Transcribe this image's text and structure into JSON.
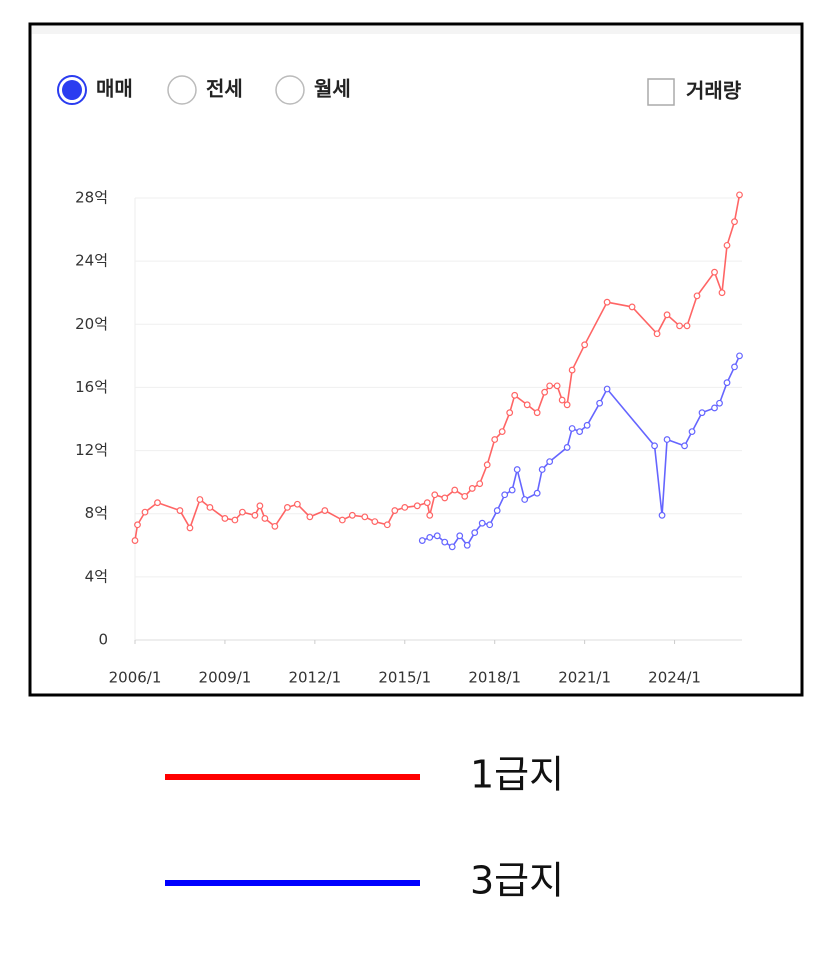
{
  "ui": {
    "options": [
      "매매",
      "전세",
      "월세"
    ],
    "selected_option": 0,
    "checkbox": "거래량"
  },
  "chart_data": {
    "type": "line",
    "xlim": [
      "2006/1",
      "2026/4"
    ],
    "xticks": [
      "2006/1",
      "2009/1",
      "2012/1",
      "2015/1",
      "2018/1",
      "2021/1",
      "2024/1"
    ],
    "ylim": [
      0,
      28
    ],
    "yticks": [
      0,
      {
        "value": 4,
        "label": "4억"
      },
      {
        "value": 8,
        "label": "8억"
      },
      {
        "value": 12,
        "label": "12억"
      },
      {
        "value": 16,
        "label": "16억"
      },
      {
        "value": 20,
        "label": "20억"
      },
      {
        "value": 24,
        "label": "24억"
      },
      {
        "value": 28,
        "label": "28억"
      }
    ],
    "grid": true,
    "series": [
      {
        "name": "1급지",
        "color": "#ff0000",
        "x": [
          "2006/1",
          "2006/2",
          "2006/5",
          "2006/10",
          "2007/7",
          "2007/11",
          "2008/3",
          "2008/7",
          "2009/1",
          "2009/5",
          "2009/8",
          "2010/1",
          "2010/3",
          "2010/5",
          "2010/9",
          "2011/2",
          "2011/6",
          "2011/11",
          "2012/5",
          "2012/12",
          "2013/4",
          "2013/9",
          "2014/1",
          "2014/6",
          "2014/9",
          "2015/1",
          "2015/6",
          "2015/10",
          "2015/11",
          "2016/1",
          "2016/5",
          "2016/9",
          "2017/1",
          "2017/4",
          "2017/7",
          "2017/10",
          "2018/1",
          "2018/4",
          "2018/7",
          "2018/9",
          "2019/2",
          "2019/6",
          "2019/9",
          "2019/11",
          "2020/2",
          "2020/4",
          "2020/6",
          "2020/8",
          "2021/1",
          "2021/10",
          "2022/8",
          "2023/6",
          "2023/10",
          "2024/3",
          "2024/6",
          "2024/10",
          "2025/5",
          "2025/8",
          "2025/10",
          "2026/1",
          "2026/3"
        ],
        "values": [
          6.3,
          7.3,
          8.1,
          8.7,
          8.2,
          7.1,
          8.9,
          8.4,
          7.7,
          7.6,
          8.1,
          7.9,
          8.5,
          7.7,
          7.2,
          8.4,
          8.6,
          7.8,
          8.2,
          7.6,
          7.9,
          7.8,
          7.5,
          7.3,
          8.2,
          8.4,
          8.5,
          8.7,
          7.9,
          9.2,
          9.0,
          9.5,
          9.1,
          9.6,
          9.9,
          11.1,
          12.7,
          13.2,
          14.4,
          15.5,
          14.9,
          14.4,
          15.7,
          16.1,
          16.1,
          15.2,
          14.9,
          17.1,
          18.7,
          21.4,
          21.1,
          19.4,
          20.6,
          19.9,
          19.9,
          21.8,
          23.3,
          22.0,
          25.0,
          26.5,
          28.2
        ]
      },
      {
        "name": "3급지",
        "color": "#0000ff",
        "x": [
          "2015/8",
          "2015/11",
          "2016/2",
          "2016/5",
          "2016/8",
          "2016/11",
          "2017/2",
          "2017/5",
          "2017/8",
          "2017/11",
          "2018/2",
          "2018/5",
          "2018/8",
          "2018/10",
          "2019/1",
          "2019/6",
          "2019/8",
          "2019/11",
          "2020/6",
          "2020/8",
          "2020/11",
          "2021/2",
          "2021/7",
          "2021/10",
          "2023/5",
          "2023/8",
          "2023/10",
          "2024/5",
          "2024/8",
          "2024/12",
          "2025/5",
          "2025/7",
          "2025/10",
          "2026/1",
          "2026/3"
        ],
        "values": [
          6.3,
          6.5,
          6.6,
          6.2,
          5.9,
          6.6,
          6.0,
          6.8,
          7.4,
          7.3,
          8.2,
          9.2,
          9.5,
          10.8,
          8.9,
          9.3,
          10.8,
          11.3,
          12.2,
          13.4,
          13.2,
          13.6,
          15.0,
          15.9,
          12.3,
          7.9,
          12.7,
          12.3,
          13.2,
          14.4,
          14.7,
          15.0,
          16.3,
          17.3,
          18.0
        ]
      }
    ]
  }
}
